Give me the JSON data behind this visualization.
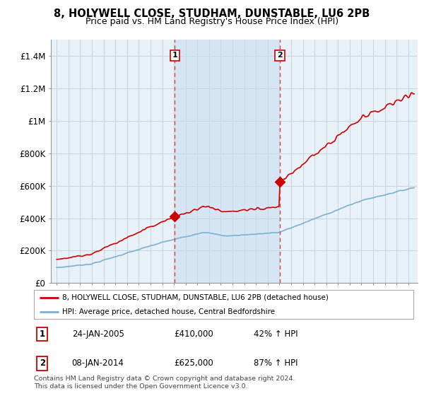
{
  "title": "8, HOLYWELL CLOSE, STUDHAM, DUNSTABLE, LU6 2PB",
  "subtitle": "Price paid vs. HM Land Registry's House Price Index (HPI)",
  "sale1_date": 2005.08,
  "sale1_price": 410000,
  "sale1_label": "1",
  "sale2_date": 2014.04,
  "sale2_price": 625000,
  "sale2_label": "2",
  "legend_line1": "8, HOLYWELL CLOSE, STUDHAM, DUNSTABLE, LU6 2PB (detached house)",
  "legend_line2": "HPI: Average price, detached house, Central Bedfordshire",
  "table_row1": [
    "1",
    "24-JAN-2005",
    "£410,000",
    "42% ↑ HPI"
  ],
  "table_row2": [
    "2",
    "08-JAN-2014",
    "£625,000",
    "87% ↑ HPI"
  ],
  "footnote1": "Contains HM Land Registry data © Crown copyright and database right 2024.",
  "footnote2": "This data is licensed under the Open Government Licence v3.0.",
  "red_color": "#cc0000",
  "blue_color": "#7ab0d4",
  "shade_color": "#ddeeff",
  "vline_color": "#dd4444",
  "bg_color": "#e8f0f8",
  "grid_color": "#c8d4e0",
  "ylim_max": 1500000,
  "xlim_min": 1994.5,
  "xlim_max": 2025.8
}
